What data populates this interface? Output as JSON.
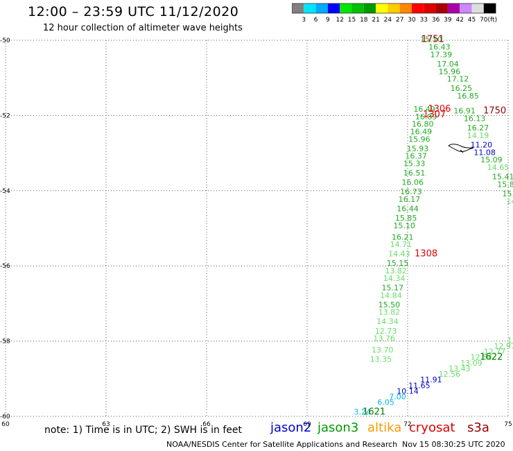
{
  "header": {
    "title": "12:00 – 23:59 UTC 11/12/2020",
    "subtitle": "12 hour collection of altimeter wave heights"
  },
  "legend": {
    "colors": [
      "#808080",
      "#00e5ff",
      "#00aaff",
      "#0000ff",
      "#00e600",
      "#00c000",
      "#009900",
      "#ffff00",
      "#ffcc00",
      "#ff8800",
      "#ff0000",
      "#dd0000",
      "#aa0000",
      "#aa00aa",
      "#cc88ff",
      "#dddddd",
      "#000000"
    ],
    "ticks": [
      "3",
      "6",
      "9",
      "12",
      "15",
      "18",
      "21",
      "24",
      "27",
      "30",
      "33",
      "36",
      "39",
      "42",
      "45",
      "70"
    ],
    "unit": "(ft)"
  },
  "axes": {
    "x_ticks": [
      60,
      63,
      66,
      69,
      72,
      75
    ],
    "y_ticks": [
      -50,
      -52,
      -54,
      -56,
      -58,
      -60
    ],
    "x_range": [
      60,
      75
    ],
    "y_range": [
      -60,
      -50
    ]
  },
  "palette": {
    "light_green": "#66dd66",
    "green": "#22aa22",
    "dark_green": "#007700",
    "blue": "#0000cc",
    "cyan": "#00b7e6",
    "red": "#dd0000",
    "dark_red": "#990000",
    "orange": "#ff9900"
  },
  "chart_data": {
    "type": "scatter",
    "markers": [
      {
        "text": "1751",
        "x": 72.75,
        "y": -50.05,
        "color": "dark_red",
        "size": 13
      },
      {
        "text": "1750",
        "x": 74.6,
        "y": -51.95,
        "color": "dark_red",
        "size": 13
      },
      {
        "text": "1306",
        "x": 72.95,
        "y": -51.9,
        "color": "red",
        "size": 13
      },
      {
        "text": "1307",
        "x": 72.8,
        "y": -52.05,
        "color": "red",
        "size": 13
      },
      {
        "text": "1308",
        "x": 72.55,
        "y": -55.75,
        "color": "red",
        "size": 13
      },
      {
        "text": "1622",
        "x": 74.5,
        "y": -58.5,
        "color": "dark_green",
        "size": 13
      },
      {
        "text": "1621",
        "x": 71.0,
        "y": -59.95,
        "color": "dark_green",
        "size": 13
      }
    ],
    "labels": [
      {
        "text": "15.10",
        "x": 72.7,
        "y": -50.05,
        "color": "green"
      },
      {
        "text": "16.43",
        "x": 72.95,
        "y": -50.25,
        "color": "green"
      },
      {
        "text": "17.39",
        "x": 73.0,
        "y": -50.45,
        "color": "green"
      },
      {
        "text": "17.04",
        "x": 73.2,
        "y": -50.7,
        "color": "green"
      },
      {
        "text": "15.96",
        "x": 73.25,
        "y": -50.9,
        "color": "green"
      },
      {
        "text": "17.12",
        "x": 73.5,
        "y": -51.1,
        "color": "green"
      },
      {
        "text": "16.25",
        "x": 73.6,
        "y": -51.35,
        "color": "green"
      },
      {
        "text": "16.85",
        "x": 73.8,
        "y": -51.55,
        "color": "green"
      },
      {
        "text": "16.49",
        "x": 72.5,
        "y": -51.9,
        "color": "green"
      },
      {
        "text": "16.91",
        "x": 73.7,
        "y": -51.95,
        "color": "green"
      },
      {
        "text": "16.89",
        "x": 72.55,
        "y": -52.1,
        "color": "green"
      },
      {
        "text": "16.13",
        "x": 74.0,
        "y": -52.15,
        "color": "green"
      },
      {
        "text": "16.80",
        "x": 72.45,
        "y": -52.3,
        "color": "green"
      },
      {
        "text": "16.27",
        "x": 74.1,
        "y": -52.4,
        "color": "green"
      },
      {
        "text": "16.49",
        "x": 72.4,
        "y": -52.5,
        "color": "green"
      },
      {
        "text": "14.19",
        "x": 74.1,
        "y": -52.6,
        "color": "light_green"
      },
      {
        "text": "15.96",
        "x": 72.35,
        "y": -52.7,
        "color": "green"
      },
      {
        "text": "11.20",
        "x": 74.2,
        "y": -52.85,
        "color": "blue"
      },
      {
        "text": "15.93",
        "x": 72.3,
        "y": -52.95,
        "color": "green"
      },
      {
        "text": "11.08",
        "x": 74.3,
        "y": -53.05,
        "color": "blue"
      },
      {
        "text": "16.37",
        "x": 72.25,
        "y": -53.15,
        "color": "green"
      },
      {
        "text": "15.09",
        "x": 74.5,
        "y": -53.25,
        "color": "green"
      },
      {
        "text": "15.33",
        "x": 72.2,
        "y": -53.35,
        "color": "green"
      },
      {
        "text": "14.65",
        "x": 74.7,
        "y": -53.45,
        "color": "light_green"
      },
      {
        "text": "16.51",
        "x": 72.2,
        "y": -53.6,
        "color": "green"
      },
      {
        "text": "15.41",
        "x": 74.85,
        "y": -53.7,
        "color": "green"
      },
      {
        "text": "16.06",
        "x": 72.15,
        "y": -53.85,
        "color": "green"
      },
      {
        "text": "15.82",
        "x": 75.0,
        "y": -53.9,
        "color": "green"
      },
      {
        "text": "16.73",
        "x": 72.1,
        "y": -54.1,
        "color": "green"
      },
      {
        "text": "15.52",
        "x": 75.15,
        "y": -54.15,
        "color": "green"
      },
      {
        "text": "16.17",
        "x": 72.05,
        "y": -54.3,
        "color": "green"
      },
      {
        "text": "14.6",
        "x": 75.2,
        "y": -54.35,
        "color": "light_green"
      },
      {
        "text": "16.44",
        "x": 72.0,
        "y": -54.55,
        "color": "green"
      },
      {
        "text": "14.",
        "x": 75.3,
        "y": -54.55,
        "color": "light_green"
      },
      {
        "text": "15.85",
        "x": 71.95,
        "y": -54.8,
        "color": "green"
      },
      {
        "text": "15",
        "x": 75.4,
        "y": -54.8,
        "color": "green"
      },
      {
        "text": "15.10",
        "x": 71.9,
        "y": -55.0,
        "color": "green"
      },
      {
        "text": "16.21",
        "x": 71.85,
        "y": -55.3,
        "color": "green"
      },
      {
        "text": "14.71",
        "x": 71.8,
        "y": -55.5,
        "color": "light_green"
      },
      {
        "text": "14.43",
        "x": 71.75,
        "y": -55.75,
        "color": "light_green"
      },
      {
        "text": "15.15",
        "x": 71.7,
        "y": -56.0,
        "color": "green"
      },
      {
        "text": "13.82",
        "x": 71.65,
        "y": -56.2,
        "color": "light_green"
      },
      {
        "text": "14.34",
        "x": 71.6,
        "y": -56.4,
        "color": "light_green"
      },
      {
        "text": "15.17",
        "x": 71.55,
        "y": -56.65,
        "color": "green"
      },
      {
        "text": "14.84",
        "x": 71.5,
        "y": -56.85,
        "color": "light_green"
      },
      {
        "text": "15.50",
        "x": 71.45,
        "y": -57.1,
        "color": "green"
      },
      {
        "text": "13.82",
        "x": 71.45,
        "y": -57.3,
        "color": "light_green"
      },
      {
        "text": "14.34",
        "x": 71.4,
        "y": -57.55,
        "color": "light_green"
      },
      {
        "text": "12.73",
        "x": 71.35,
        "y": -57.8,
        "color": "light_green"
      },
      {
        "text": "13.76",
        "x": 71.3,
        "y": -58.0,
        "color": "light_green"
      },
      {
        "text": "13.70",
        "x": 71.25,
        "y": -58.3,
        "color": "light_green"
      },
      {
        "text": "13.35",
        "x": 71.2,
        "y": -58.55,
        "color": "light_green"
      },
      {
        "text": "13",
        "x": 75.65,
        "y": -57.75,
        "color": "light_green"
      },
      {
        "text": "13.01",
        "x": 75.55,
        "y": -57.9,
        "color": "light_green"
      },
      {
        "text": "13.82",
        "x": 75.3,
        "y": -58.05,
        "color": "light_green"
      },
      {
        "text": "12.97",
        "x": 74.9,
        "y": -58.2,
        "color": "light_green"
      },
      {
        "text": "12.77",
        "x": 74.6,
        "y": -58.35,
        "color": "light_green"
      },
      {
        "text": "12.54",
        "x": 74.2,
        "y": -58.5,
        "color": "light_green"
      },
      {
        "text": "13.09",
        "x": 73.9,
        "y": -58.65,
        "color": "light_green"
      },
      {
        "text": "13.43",
        "x": 73.55,
        "y": -58.8,
        "color": "light_green"
      },
      {
        "text": "12.56",
        "x": 73.25,
        "y": -58.95,
        "color": "light_green"
      },
      {
        "text": "11.91",
        "x": 72.7,
        "y": -59.1,
        "color": "blue"
      },
      {
        "text": "11.65",
        "x": 72.35,
        "y": -59.25,
        "color": "blue"
      },
      {
        "text": "10.14",
        "x": 72.0,
        "y": -59.4,
        "color": "blue"
      },
      {
        "text": "7.00",
        "x": 71.7,
        "y": -59.55,
        "color": "cyan"
      },
      {
        "text": "6.05",
        "x": 71.35,
        "y": -59.7,
        "color": "cyan"
      },
      {
        "text": "3.24",
        "x": 70.65,
        "y": -59.95,
        "color": "cyan"
      }
    ]
  },
  "footer": {
    "note": "note:  1) Time is in UTC;  2) SWH is in feet",
    "credit": "NOAA/NESDIS Center for Satellite Applications and Research",
    "timestamp": "Nov 15  08:30:25 UTC 2020",
    "satellites": [
      {
        "name": "jason2",
        "color": "#0000cc"
      },
      {
        "name": "jason3",
        "color": "#009900"
      },
      {
        "name": "altika",
        "color": "#ff9900"
      },
      {
        "name": "cryosat",
        "color": "#dd0000"
      },
      {
        "name": "s3a",
        "color": "#990000"
      }
    ]
  }
}
